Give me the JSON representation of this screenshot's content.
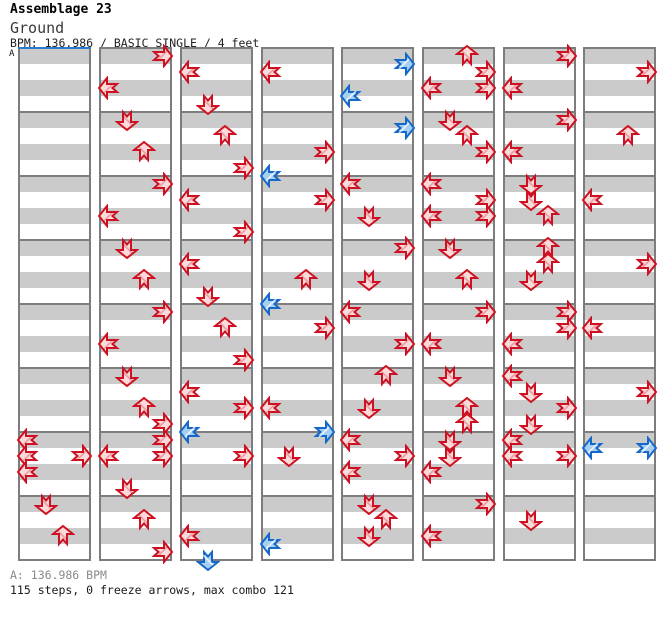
{
  "header": {
    "artist": "Assemblage 23",
    "title": "Ground",
    "info": "BPM: 136.986 / BASIC SINGLE / 4 feet"
  },
  "section_label": "A",
  "footer": {
    "bpm_line": "A: 136.986 BPM",
    "stats_line": "115 steps, 0 freeze arrows, max combo 121"
  },
  "colors": {
    "note_4th_stroke": "#cc1122",
    "note_4th_fill": "#fbdada",
    "note_8th_stroke": "#1668c8",
    "note_8th_fill": "#a6cff2",
    "beat_stripe": "#cbcbcb",
    "measure_border": "#7d7d7d",
    "section_line": "#2b7bd4",
    "footer_gray": "#8a8a8a"
  },
  "chart_data": {
    "type": "ddr-step-chart",
    "song": "Ground",
    "artist": "Assemblage 23",
    "bpm": 136.986,
    "difficulty": "BASIC SINGLE",
    "feet": 4,
    "steps": 115,
    "freeze_arrows": 0,
    "max_combo": 121,
    "columns": 8,
    "measures_per_column": 8,
    "beats_per_measure": 4,
    "lanes": [
      "left",
      "down",
      "up",
      "right"
    ],
    "note_types": {
      "4th": "red",
      "8th": "blue"
    },
    "sections": [
      {
        "label": "A",
        "bpm": 136.986,
        "column": 1,
        "measure": 1
      }
    ],
    "arrows": [
      [
        1,
        7,
        0,
        "left",
        "4th"
      ],
      [
        1,
        7,
        1,
        "left",
        "4th"
      ],
      [
        1,
        7,
        1,
        "right",
        "4th"
      ],
      [
        1,
        7,
        2,
        "left",
        "4th"
      ],
      [
        1,
        8,
        0,
        "down",
        "4th"
      ],
      [
        1,
        8,
        2,
        "up",
        "4th"
      ],
      [
        2,
        1,
        0,
        "right",
        "4th"
      ],
      [
        2,
        1,
        2,
        "left",
        "4th"
      ],
      [
        2,
        2,
        0,
        "down",
        "4th"
      ],
      [
        2,
        2,
        2,
        "up",
        "4th"
      ],
      [
        2,
        3,
        0,
        "right",
        "4th"
      ],
      [
        2,
        3,
        2,
        "left",
        "4th"
      ],
      [
        2,
        4,
        0,
        "down",
        "4th"
      ],
      [
        2,
        4,
        2,
        "up",
        "4th"
      ],
      [
        2,
        5,
        0,
        "right",
        "4th"
      ],
      [
        2,
        5,
        2,
        "left",
        "4th"
      ],
      [
        2,
        6,
        0,
        "down",
        "4th"
      ],
      [
        2,
        6,
        2,
        "up",
        "4th"
      ],
      [
        2,
        6,
        3,
        "right",
        "4th"
      ],
      [
        2,
        7,
        0,
        "right",
        "4th"
      ],
      [
        2,
        7,
        1,
        "left",
        "4th"
      ],
      [
        2,
        7,
        1,
        "right",
        "4th"
      ],
      [
        2,
        7,
        3,
        "down",
        "4th"
      ],
      [
        2,
        8,
        1,
        "up",
        "4th"
      ],
      [
        2,
        8,
        3,
        "right",
        "4th"
      ],
      [
        3,
        1,
        1,
        "left",
        "4th"
      ],
      [
        3,
        1,
        3,
        "down",
        "4th"
      ],
      [
        3,
        2,
        1,
        "up",
        "4th"
      ],
      [
        3,
        2,
        3,
        "right",
        "4th"
      ],
      [
        3,
        3,
        1,
        "left",
        "4th"
      ],
      [
        3,
        3,
        3,
        "right",
        "4th"
      ],
      [
        3,
        4,
        1,
        "left",
        "4th"
      ],
      [
        3,
        4,
        3,
        "down",
        "4th"
      ],
      [
        3,
        5,
        1,
        "up",
        "4th"
      ],
      [
        3,
        5,
        3,
        "right",
        "4th"
      ],
      [
        3,
        6,
        1,
        "left",
        "4th"
      ],
      [
        3,
        6,
        2,
        "right",
        "4th"
      ],
      [
        3,
        6,
        3.5,
        "left",
        "8th"
      ],
      [
        3,
        7,
        1,
        "right",
        "4th"
      ],
      [
        3,
        8,
        2,
        "left",
        "4th"
      ],
      [
        3,
        8,
        3.5,
        "down",
        "8th"
      ],
      [
        4,
        1,
        1,
        "left",
        "4th"
      ],
      [
        4,
        2,
        2,
        "right",
        "4th"
      ],
      [
        4,
        2,
        3.5,
        "left",
        "8th"
      ],
      [
        4,
        3,
        1,
        "right",
        "4th"
      ],
      [
        4,
        4,
        2,
        "up",
        "4th"
      ],
      [
        4,
        4,
        3.5,
        "left",
        "8th"
      ],
      [
        4,
        5,
        1,
        "right",
        "4th"
      ],
      [
        4,
        6,
        2,
        "left",
        "4th"
      ],
      [
        4,
        6,
        3.5,
        "right",
        "8th"
      ],
      [
        4,
        7,
        1,
        "down",
        "4th"
      ],
      [
        4,
        8,
        2.5,
        "left",
        "8th"
      ],
      [
        5,
        1,
        0.5,
        "right",
        "8th"
      ],
      [
        5,
        1,
        2.5,
        "left",
        "8th"
      ],
      [
        5,
        2,
        0.5,
        "right",
        "8th"
      ],
      [
        5,
        3,
        0,
        "left",
        "4th"
      ],
      [
        5,
        3,
        2,
        "down",
        "4th"
      ],
      [
        5,
        4,
        0,
        "right",
        "4th"
      ],
      [
        5,
        4,
        2,
        "down",
        "4th"
      ],
      [
        5,
        5,
        0,
        "left",
        "4th"
      ],
      [
        5,
        5,
        2,
        "right",
        "4th"
      ],
      [
        5,
        6,
        0,
        "up",
        "4th"
      ],
      [
        5,
        6,
        2,
        "down",
        "4th"
      ],
      [
        5,
        7,
        0,
        "left",
        "4th"
      ],
      [
        5,
        7,
        1,
        "right",
        "4th"
      ],
      [
        5,
        7,
        2,
        "left",
        "4th"
      ],
      [
        5,
        8,
        0,
        "down",
        "4th"
      ],
      [
        5,
        8,
        1,
        "up",
        "4th"
      ],
      [
        5,
        8,
        2,
        "down",
        "4th"
      ],
      [
        6,
        1,
        0,
        "up",
        "4th"
      ],
      [
        6,
        1,
        1,
        "right",
        "4th"
      ],
      [
        6,
        1,
        2,
        "left",
        "4th"
      ],
      [
        6,
        1,
        2,
        "right",
        "4th"
      ],
      [
        6,
        2,
        0,
        "down",
        "4th"
      ],
      [
        6,
        2,
        1,
        "up",
        "4th"
      ],
      [
        6,
        2,
        2,
        "right",
        "4th"
      ],
      [
        6,
        3,
        0,
        "left",
        "4th"
      ],
      [
        6,
        3,
        1,
        "right",
        "4th"
      ],
      [
        6,
        3,
        2,
        "left",
        "4th"
      ],
      [
        6,
        3,
        2,
        "right",
        "4th"
      ],
      [
        6,
        4,
        0,
        "down",
        "4th"
      ],
      [
        6,
        4,
        2,
        "up",
        "4th"
      ],
      [
        6,
        5,
        0,
        "right",
        "4th"
      ],
      [
        6,
        5,
        2,
        "left",
        "4th"
      ],
      [
        6,
        6,
        0,
        "down",
        "4th"
      ],
      [
        6,
        6,
        2,
        "up",
        "4th"
      ],
      [
        6,
        6,
        3,
        "up",
        "4th"
      ],
      [
        6,
        7,
        0,
        "down",
        "4th"
      ],
      [
        6,
        7,
        1,
        "down",
        "4th"
      ],
      [
        6,
        7,
        2,
        "left",
        "4th"
      ],
      [
        6,
        8,
        0,
        "right",
        "4th"
      ],
      [
        6,
        8,
        2,
        "left",
        "4th"
      ],
      [
        7,
        1,
        0,
        "right",
        "4th"
      ],
      [
        7,
        1,
        2,
        "left",
        "4th"
      ],
      [
        7,
        2,
        0,
        "right",
        "4th"
      ],
      [
        7,
        2,
        2,
        "left",
        "4th"
      ],
      [
        7,
        3,
        0,
        "down",
        "4th"
      ],
      [
        7,
        3,
        1,
        "down",
        "4th"
      ],
      [
        7,
        3,
        2,
        "up",
        "4th"
      ],
      [
        7,
        4,
        0,
        "up",
        "4th"
      ],
      [
        7,
        4,
        1,
        "up",
        "4th"
      ],
      [
        7,
        4,
        2,
        "down",
        "4th"
      ],
      [
        7,
        5,
        0,
        "right",
        "4th"
      ],
      [
        7,
        5,
        1,
        "right",
        "4th"
      ],
      [
        7,
        5,
        2,
        "left",
        "4th"
      ],
      [
        7,
        6,
        0,
        "left",
        "4th"
      ],
      [
        7,
        6,
        1,
        "down",
        "4th"
      ],
      [
        7,
        6,
        2,
        "right",
        "4th"
      ],
      [
        7,
        6,
        3,
        "down",
        "4th"
      ],
      [
        7,
        7,
        0,
        "left",
        "4th"
      ],
      [
        7,
        7,
        1,
        "left",
        "4th"
      ],
      [
        7,
        7,
        1,
        "right",
        "4th"
      ],
      [
        7,
        8,
        1,
        "down",
        "4th"
      ],
      [
        8,
        1,
        1,
        "right",
        "4th"
      ],
      [
        8,
        2,
        1,
        "up",
        "4th"
      ],
      [
        8,
        3,
        1,
        "left",
        "4th"
      ],
      [
        8,
        4,
        1,
        "right",
        "4th"
      ],
      [
        8,
        5,
        1,
        "left",
        "4th"
      ],
      [
        8,
        6,
        1,
        "right",
        "4th"
      ],
      [
        8,
        7,
        0.5,
        "left",
        "8th"
      ],
      [
        8,
        7,
        0.5,
        "right",
        "8th"
      ]
    ]
  }
}
